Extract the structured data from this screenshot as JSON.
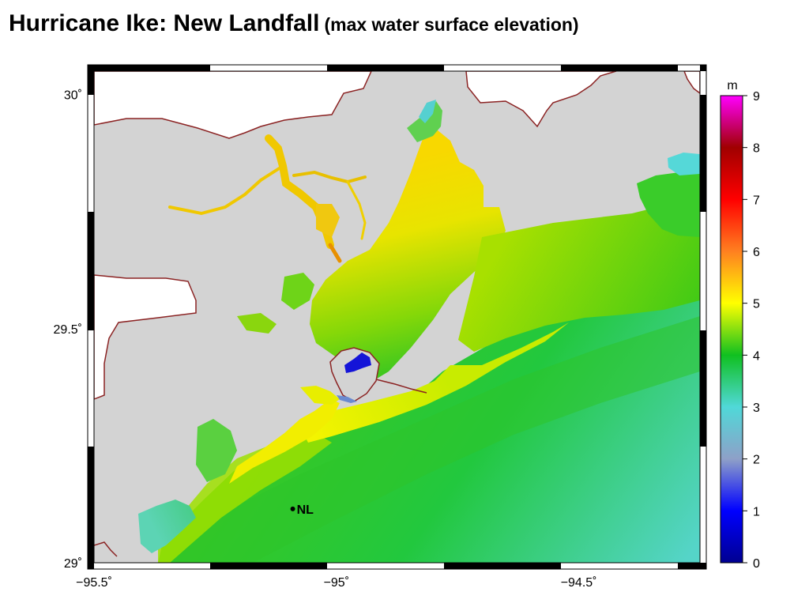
{
  "title": {
    "main": "Hurricane Ike: New Landfall",
    "sub": "(max water surface elevation)"
  },
  "map": {
    "lon_range": [
      -95.5,
      -94.25
    ],
    "lat_range": [
      29.0,
      30.05
    ],
    "lon_ticks": [
      {
        "value": -95.5,
        "label": "−95.5˚"
      },
      {
        "value": -95.0,
        "label": "−95˚"
      },
      {
        "value": -94.5,
        "label": "−94.5˚"
      }
    ],
    "lat_ticks": [
      {
        "value": 30.0,
        "label": "30˚"
      },
      {
        "value": 29.5,
        "label": "29.5˚"
      },
      {
        "value": 29.0,
        "label": "29˚"
      }
    ],
    "marker": {
      "label": "NL",
      "lon": -95.09,
      "lat": 29.115
    }
  },
  "colorbar": {
    "unit": "m",
    "min": 0,
    "max": 9,
    "tick_labels": [
      "0",
      "1",
      "2",
      "3",
      "4",
      "5",
      "6",
      "7",
      "8",
      "9"
    ],
    "stops": [
      "#000090",
      "#0000ff",
      "#8ea0c8",
      "#50d8d8",
      "#10c020",
      "#ffff00",
      "#ff8020",
      "#ff0000",
      "#a00000",
      "#ff00ff"
    ]
  },
  "colors": {
    "land": "#d3d3d3",
    "coast": "#8b2323"
  }
}
